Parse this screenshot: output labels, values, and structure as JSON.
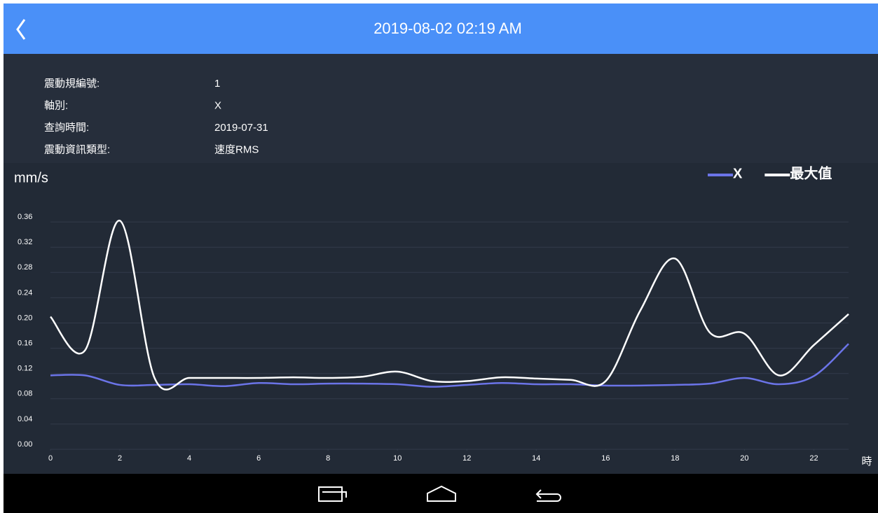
{
  "header": {
    "title": "2019-08-02 02:19 AM"
  },
  "info": [
    {
      "label": "震動規編號:",
      "value": "1"
    },
    {
      "label": "軸別:",
      "value": "X"
    },
    {
      "label": "查詢時間:",
      "value": "2019-07-31"
    },
    {
      "label": "震動資訊類型:",
      "value": "速度RMS"
    }
  ],
  "chart_data": {
    "type": "line",
    "y_label": "mm/s",
    "x_label": "時",
    "x": [
      0,
      1,
      2,
      3,
      4,
      5,
      6,
      7,
      8,
      9,
      10,
      11,
      12,
      13,
      14,
      15,
      16,
      17,
      18,
      19,
      20,
      21,
      22,
      23
    ],
    "series": [
      {
        "name": "X",
        "color": "#6b74e8",
        "values": [
          0.117,
          0.117,
          0.102,
          0.102,
          0.103,
          0.1,
          0.105,
          0.103,
          0.104,
          0.104,
          0.103,
          0.099,
          0.102,
          0.105,
          0.103,
          0.103,
          0.101,
          0.101,
          0.102,
          0.104,
          0.113,
          0.103,
          0.116,
          0.167
        ]
      },
      {
        "name": "最大值",
        "color": "#ffffff",
        "values": [
          0.21,
          0.157,
          0.362,
          0.113,
          0.113,
          0.113,
          0.113,
          0.114,
          0.113,
          0.115,
          0.123,
          0.108,
          0.108,
          0.114,
          0.112,
          0.11,
          0.108,
          0.22,
          0.302,
          0.185,
          0.183,
          0.117,
          0.165,
          0.214
        ]
      }
    ],
    "xlim": [
      0,
      23
    ],
    "xticks": [
      0,
      2,
      4,
      6,
      8,
      10,
      12,
      14,
      16,
      18,
      20,
      22
    ],
    "ylim": [
      0,
      0.4
    ],
    "yticks": [
      {
        "value": 0,
        "label": "0.00"
      },
      {
        "value": 0.04,
        "label": "0.04"
      },
      {
        "value": 0.08,
        "label": "0.08"
      },
      {
        "value": 0.12,
        "label": "0.12"
      },
      {
        "value": 0.16,
        "label": "0.16"
      },
      {
        "value": 0.2,
        "label": "0.20"
      },
      {
        "value": 0.24,
        "label": "0.24"
      },
      {
        "value": 0.28,
        "label": "0.28"
      },
      {
        "value": 0.32,
        "label": "0.32"
      },
      {
        "value": 0.36,
        "label": "0.36"
      }
    ],
    "grid": true,
    "legend": "top-right"
  }
}
